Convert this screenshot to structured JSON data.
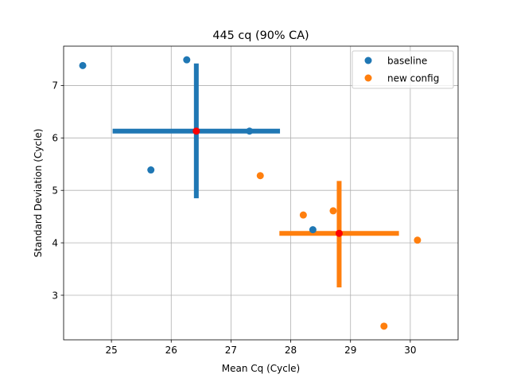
{
  "chart_data": {
    "type": "scatter",
    "title": "445 cq (90% CA)",
    "xlabel": "Mean Cq (Cycle)",
    "ylabel": "Standard Deviation (Cycle)",
    "xlim": [
      24.2,
      30.8
    ],
    "ylim": [
      2.15,
      7.75
    ],
    "xticks": [
      25,
      26,
      27,
      28,
      29,
      30
    ],
    "yticks": [
      3,
      4,
      5,
      6,
      7
    ],
    "grid": true,
    "legend_position": "top-right",
    "series": [
      {
        "name": "baseline",
        "color": "#1f77b4",
        "points": [
          {
            "x": 24.52,
            "y": 7.38
          },
          {
            "x": 25.66,
            "y": 5.39
          },
          {
            "x": 26.26,
            "y": 7.49
          },
          {
            "x": 27.31,
            "y": 6.13
          },
          {
            "x": 28.37,
            "y": 4.25
          }
        ],
        "mean": {
          "x": 26.42,
          "y": 6.13
        },
        "spread_x": [
          25.02,
          27.82
        ],
        "spread_y": [
          4.85,
          7.42
        ]
      },
      {
        "name": "new config",
        "color": "#ff7f0e",
        "points": [
          {
            "x": 27.49,
            "y": 5.28
          },
          {
            "x": 28.21,
            "y": 4.53
          },
          {
            "x": 28.71,
            "y": 4.61
          },
          {
            "x": 29.56,
            "y": 2.41
          },
          {
            "x": 30.12,
            "y": 4.05
          }
        ],
        "mean": {
          "x": 28.81,
          "y": 4.18
        },
        "spread_x": [
          27.81,
          29.81
        ],
        "spread_y": [
          3.15,
          5.18
        ]
      }
    ],
    "mean_marker_color": "#ff0000"
  }
}
